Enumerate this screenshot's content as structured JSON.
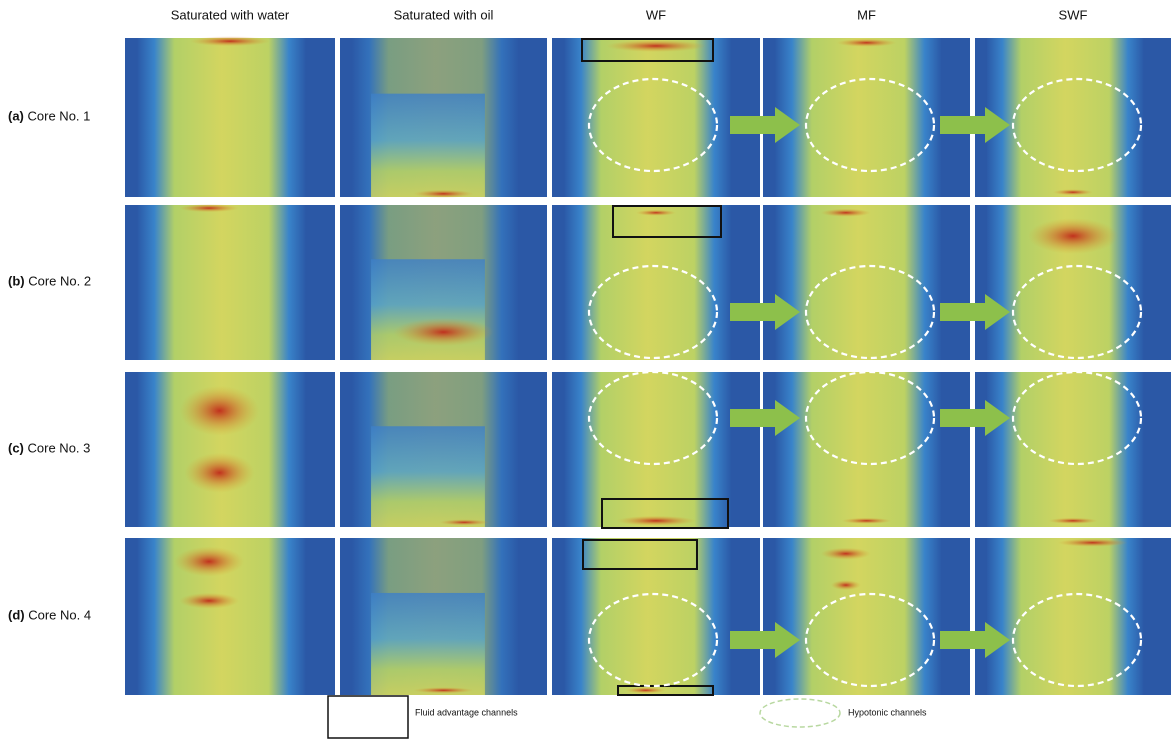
{
  "column_headers": [
    "Saturated with water",
    "Saturated with oil",
    "WF",
    "MF",
    "SWF"
  ],
  "rows": [
    {
      "tag": "(a)",
      "label": "Core No. 1"
    },
    {
      "tag": "(b)",
      "label": "Core No. 2"
    },
    {
      "tag": "(c)",
      "label": "Core No. 3"
    },
    {
      "tag": "(d)",
      "label": "Core No. 4"
    }
  ],
  "legend": {
    "fluid": "Fluid advantage channels",
    "hypotonic": "Hypotonic channels"
  }
}
